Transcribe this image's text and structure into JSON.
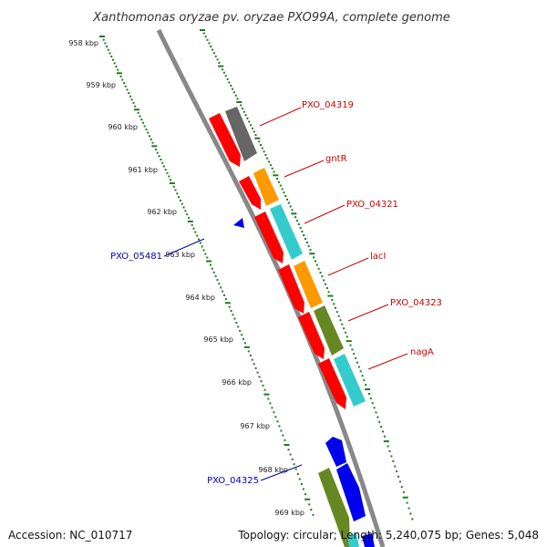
{
  "title": "Xanthomonas oryzae pv. oryzae PXO99A, complete genome",
  "ticks": [
    "958 kbp",
    "959 kbp",
    "960 kbp",
    "961 kbp",
    "962 kbp",
    "963 kbp",
    "964 kbp",
    "965 kbp",
    "966 kbp",
    "967 kbp",
    "968 kbp",
    "969 kbp"
  ],
  "features": [
    {
      "id": "PXO_04319",
      "label_color": "#cc0000"
    },
    {
      "id": "gntR",
      "label_color": "#cc0000"
    },
    {
      "id": "PXO_04321",
      "label_color": "#cc0000"
    },
    {
      "id": "lacI",
      "label_color": "#cc0000"
    },
    {
      "id": "PXO_04323",
      "label_color": "#cc0000"
    },
    {
      "id": "nagA",
      "label_color": "#cc0000"
    },
    {
      "id": "PXO_05481",
      "label_color": "#0000aa"
    },
    {
      "id": "PXO_04325",
      "label_color": "#0000aa"
    }
  ],
  "colors": {
    "backbone": "#888888",
    "ticks": "#1f7a1f",
    "gene": "#ff0000",
    "orange": "#ff9900",
    "cyan": "#33cccc",
    "olive": "#668822",
    "gray": "#666666",
    "blue": "#0000ee"
  },
  "footer": {
    "accession": "Accession: NC_010717",
    "summary": "Topology: circular; Length: 5,240,075 bp; Genes: 5,048"
  }
}
